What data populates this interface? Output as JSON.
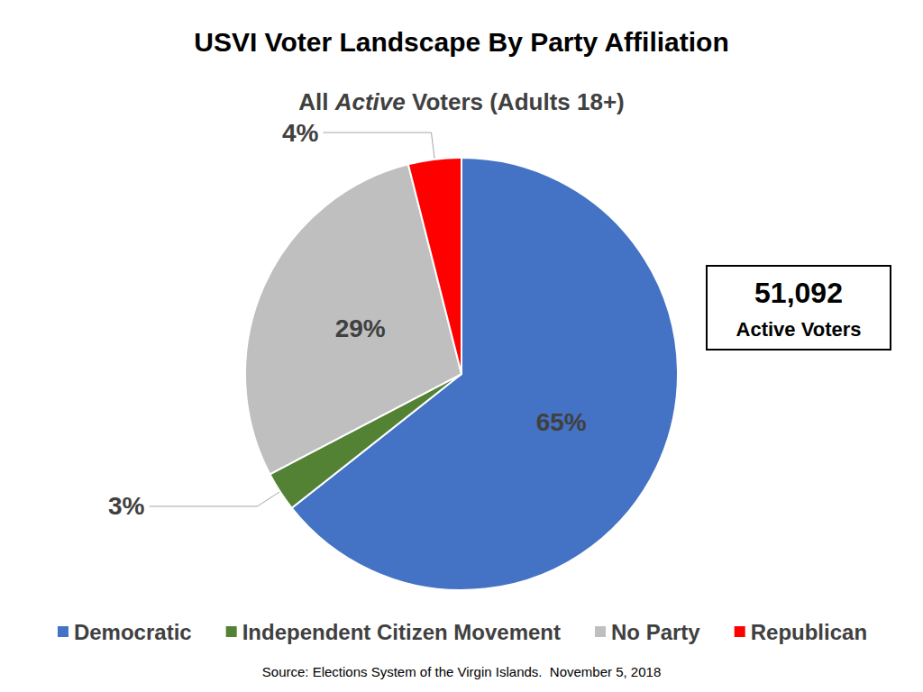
{
  "chart_data": {
    "type": "pie",
    "title": "USVI Voter Landscape By Party Affiliation",
    "subtitle": "All Active Voters (Adults 18+)",
    "categories": [
      "Democratic",
      "Independent Citizen Movement",
      "No Party",
      "Republican"
    ],
    "values": [
      65,
      3,
      29,
      4
    ],
    "value_labels": [
      "65%",
      "3%",
      "29%",
      "4%"
    ],
    "colors": [
      "#4472c4",
      "#548235",
      "#bfbfbf",
      "#ff0000"
    ],
    "data_labels": true,
    "legend": "bottom",
    "annotations": [
      "51,092",
      "Active Voters"
    ],
    "source": "Source: Elections System of the Virgin Islands.  November 5, 2018"
  }
}
